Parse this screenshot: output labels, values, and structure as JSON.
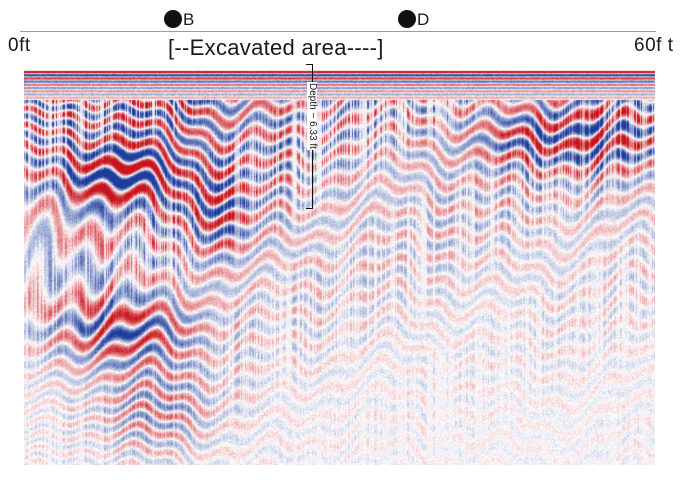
{
  "markers": [
    {
      "label": "B"
    },
    {
      "label": "D"
    }
  ],
  "scale": {
    "start_label": "0ft",
    "end_label": "60f t"
  },
  "excavated_label": "[--Excavated area----]",
  "depth_annotation": "Depth ~ 6.33 ft",
  "colors": {
    "positive_reflection": "#c8141e",
    "negative_reflection": "#1e3c9b",
    "background": "#ffffff",
    "scan_line": "#8aa0c8"
  }
}
